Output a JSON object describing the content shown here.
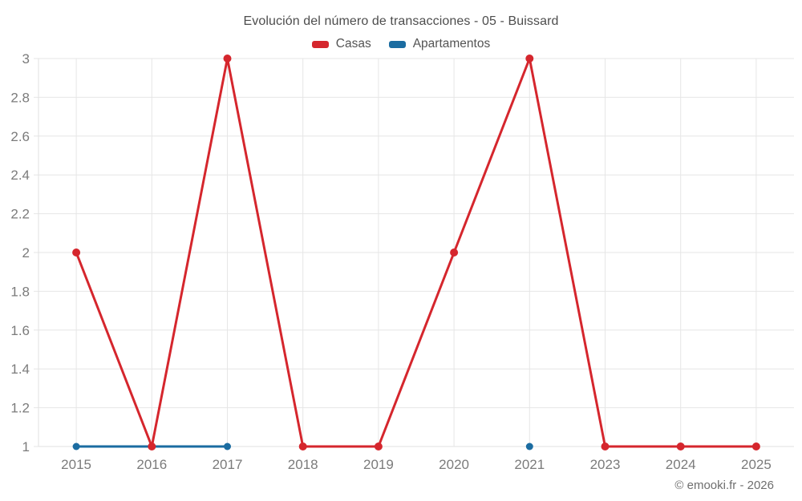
{
  "chart_data": {
    "type": "line",
    "title": "Evolución del número de transacciones - 05 - Buissard",
    "categories": [
      "2015",
      "2016",
      "2017",
      "2018",
      "2019",
      "2020",
      "2021",
      "2023",
      "2024",
      "2025"
    ],
    "series": [
      {
        "name": "Casas",
        "color": "#d5262d",
        "marker_radius": 5,
        "values": [
          2,
          1,
          3,
          1,
          1,
          2,
          3,
          1,
          1,
          1
        ]
      },
      {
        "name": "Apartamentos",
        "color": "#1b6ca1",
        "marker_radius": 4.5,
        "values": [
          1,
          1,
          1,
          null,
          null,
          null,
          1,
          null,
          null,
          null
        ]
      }
    ],
    "xlabel": "",
    "ylabel": "",
    "ylim": [
      1,
      3
    ],
    "yticks": [
      1,
      1.2,
      1.4,
      1.6,
      1.8,
      2,
      2.2,
      2.4,
      2.6,
      2.8,
      3
    ],
    "grid": true,
    "legend_position": "top"
  },
  "footer": {
    "watermark": "© emooki.fr - 2026"
  }
}
